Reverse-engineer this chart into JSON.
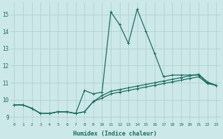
{
  "xlabel": "Humidex (Indice chaleur)",
  "background_color": "#cce8e8",
  "line_color": "#1a6b60",
  "grid_color": "#aacccc",
  "xlim": [
    -0.5,
    23.5
  ],
  "ylim": [
    8.7,
    15.7
  ],
  "yticks": [
    9,
    10,
    11,
    12,
    13,
    14,
    15
  ],
  "xticks": [
    0,
    1,
    2,
    3,
    4,
    5,
    6,
    7,
    8,
    9,
    10,
    11,
    12,
    13,
    14,
    15,
    16,
    17,
    18,
    19,
    20,
    21,
    22,
    23
  ],
  "series1_x": [
    0,
    1,
    2,
    3,
    4,
    5,
    6,
    7,
    8,
    9,
    10,
    11,
    12,
    13,
    14,
    15,
    16,
    17,
    18,
    19,
    20,
    21,
    22,
    23
  ],
  "series1_y": [
    9.7,
    9.7,
    9.5,
    9.2,
    9.2,
    9.3,
    9.3,
    9.2,
    9.3,
    9.9,
    10.1,
    10.35,
    10.45,
    10.55,
    10.65,
    10.75,
    10.85,
    10.95,
    11.05,
    11.15,
    11.25,
    11.35,
    10.95,
    10.85
  ],
  "series2_x": [
    0,
    1,
    2,
    3,
    4,
    5,
    6,
    7,
    8,
    9,
    10,
    11,
    12,
    13,
    14,
    15,
    16,
    17,
    18,
    19,
    20,
    21,
    22,
    23
  ],
  "series2_y": [
    9.7,
    9.7,
    9.5,
    9.2,
    9.2,
    9.3,
    9.3,
    9.2,
    10.55,
    10.35,
    10.45,
    15.15,
    14.4,
    13.3,
    15.3,
    14.0,
    12.7,
    11.35,
    11.45,
    11.45,
    11.45,
    11.45,
    11.0,
    10.85
  ],
  "series3_x": [
    0,
    1,
    2,
    3,
    4,
    5,
    6,
    7,
    8,
    9,
    10,
    11,
    12,
    13,
    14,
    15,
    16,
    17,
    18,
    19,
    20,
    21,
    22,
    23
  ],
  "series3_y": [
    9.7,
    9.7,
    9.5,
    9.2,
    9.2,
    9.3,
    9.3,
    9.2,
    9.3,
    9.9,
    10.25,
    10.5,
    10.6,
    10.7,
    10.8,
    10.9,
    11.0,
    11.1,
    11.2,
    11.3,
    11.4,
    11.5,
    11.05,
    10.85
  ]
}
